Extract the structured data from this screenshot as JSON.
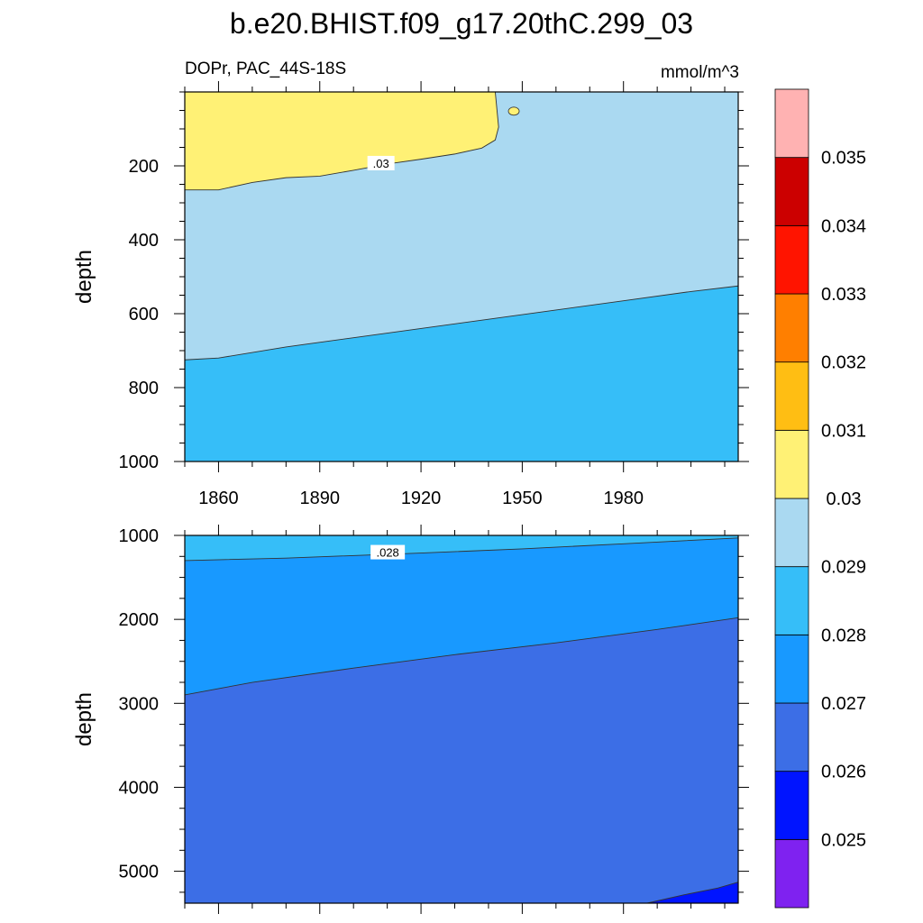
{
  "chart_data": {
    "type": "filled-contour",
    "title": "b.e20.BHIST.f09_g17.20thC.299_03",
    "subtitle_left": "DOPr, PAC_44S-18S",
    "subtitle_right": "mmol/m^3",
    "xlim": [
      1850,
      2014
    ],
    "x_ticks": [
      1860,
      1890,
      1920,
      1950,
      1980
    ],
    "colorbar": {
      "labels": [
        "0.025",
        "0.026",
        "0.027",
        "0.028",
        "0.029",
        "0.03",
        "0.031",
        "0.032",
        "0.033",
        "0.034",
        "0.035"
      ],
      "colors": [
        "#7f22f0",
        "#0014ff",
        "#3c6ee6",
        "#1899ff",
        "#36bef8",
        "#aad9f1",
        "#fff175",
        "#ffbe13",
        "#ff7f00",
        "#ff1400",
        "#cc0000",
        "#ffb2b2"
      ]
    },
    "panels": [
      {
        "name": "upper",
        "ylabel": "depth",
        "ylim": [
          0,
          1000
        ],
        "y_ticks": [
          200,
          400,
          600,
          800,
          1000
        ],
        "contours": [
          {
            "level": 0.03,
            "label": ".03",
            "label_at": [
              1906,
              195
            ],
            "points": [
              [
                1850,
                265
              ],
              [
                1860,
                265
              ],
              [
                1870,
                245
              ],
              [
                1880,
                232
              ],
              [
                1890,
                228
              ],
              [
                1900,
                212
              ],
              [
                1910,
                195
              ],
              [
                1920,
                182
              ],
              [
                1930,
                168
              ],
              [
                1938,
                152
              ],
              [
                1942,
                130
              ],
              [
                1943,
                95
              ],
              [
                1942,
                0
              ]
            ]
          },
          {
            "level": 0.029,
            "label": "",
            "points": [
              [
                1850,
                725
              ],
              [
                1860,
                720
              ],
              [
                1880,
                690
              ],
              [
                1900,
                665
              ],
              [
                1920,
                640
              ],
              [
                1940,
                615
              ],
              [
                1960,
                590
              ],
              [
                1980,
                565
              ],
              [
                2000,
                540
              ],
              [
                2014,
                525
              ]
            ]
          }
        ]
      },
      {
        "name": "lower",
        "ylabel": "depth",
        "ylim": [
          1000,
          5380
        ],
        "y_ticks": [
          1000,
          2000,
          3000,
          4000,
          5000
        ],
        "contours": [
          {
            "level": 0.028,
            "label": ".028",
            "label_at": [
              1908,
              1210
            ],
            "points": [
              [
                1850,
                1300
              ],
              [
                1880,
                1270
              ],
              [
                1920,
                1210
              ],
              [
                1950,
                1160
              ],
              [
                1980,
                1100
              ],
              [
                2014,
                1030
              ]
            ]
          },
          {
            "level": 0.027,
            "label": "",
            "points": [
              [
                1850,
                2900
              ],
              [
                1870,
                2750
              ],
              [
                1900,
                2580
              ],
              [
                1930,
                2420
              ],
              [
                1960,
                2280
              ],
              [
                1990,
                2120
              ],
              [
                2014,
                1980
              ]
            ]
          },
          {
            "level": 0.026,
            "label": "",
            "points": [
              [
                1987,
                5380
              ],
              [
                1998,
                5280
              ],
              [
                2008,
                5200
              ],
              [
                2014,
                5130
              ]
            ]
          }
        ]
      }
    ]
  }
}
